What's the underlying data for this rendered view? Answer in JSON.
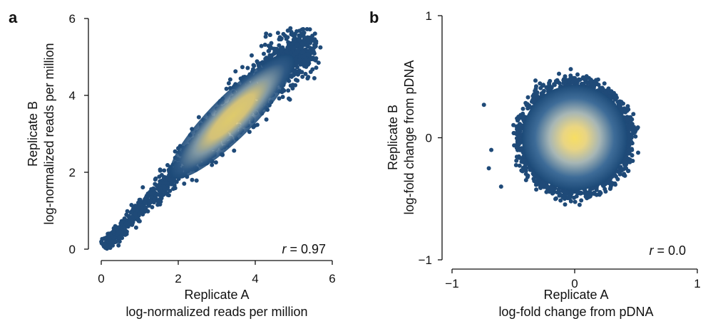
{
  "chart_data": [
    {
      "type": "scatter",
      "panel_label": "a",
      "xlabel_line1": "Replicate A",
      "xlabel_line2": "log-normalized reads per million",
      "ylabel_line1": "Replicate B",
      "ylabel_line2": "log-normalized reads per million",
      "xlim": [
        0,
        6
      ],
      "ylim": [
        0,
        6
      ],
      "xticks": [
        0,
        2,
        4,
        6
      ],
      "yticks": [
        0,
        2,
        4,
        6
      ],
      "xtick_labels": [
        "0",
        "2",
        "4",
        "6"
      ],
      "ytick_labels": [
        "0",
        "2",
        "4",
        "6"
      ],
      "annotation_var": "r",
      "annotation_value": " = 0.97",
      "correlation": 0.97,
      "density": "high-density yellow core along diagonal centered near (3.2, 3.3)",
      "colors": {
        "low_density": "#1c4a78",
        "high_density": "#f4d96a"
      }
    },
    {
      "type": "scatter",
      "panel_label": "b",
      "xlabel_line1": "Replicate A",
      "xlabel_line2": "log-fold change from pDNA",
      "ylabel_line1": "Replicate B",
      "ylabel_line2": "log-fold change from pDNA",
      "xlim": [
        -1,
        1
      ],
      "ylim": [
        -1,
        1
      ],
      "xticks": [
        -1,
        0,
        1
      ],
      "yticks": [
        -1,
        0,
        1
      ],
      "xtick_labels": [
        "−1",
        "0",
        "1"
      ],
      "ytick_labels": [
        "−1",
        "0",
        "1"
      ],
      "annotation_var": "r",
      "annotation_value": " = 0.0",
      "correlation": 0.0,
      "density": "circular cloud centered at (0, 0), radius about 0.45",
      "colors": {
        "low_density": "#1c4a78",
        "high_density": "#f4d96a"
      }
    }
  ]
}
